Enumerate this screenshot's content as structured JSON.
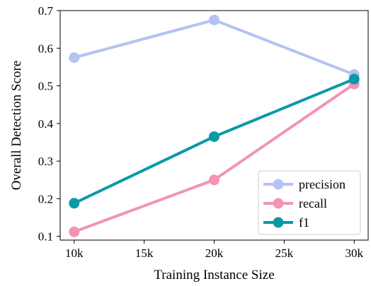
{
  "chart_data": {
    "type": "line",
    "title": "",
    "xlabel": "Training Instance Size",
    "ylabel": "Overall Detection Score",
    "x": [
      10000,
      20000,
      30000
    ],
    "xlim": [
      9000,
      31000
    ],
    "ylim": [
      0.09,
      0.7
    ],
    "xticks": [
      10000,
      15000,
      20000,
      25000,
      30000
    ],
    "xtick_labels": [
      "10k",
      "15k",
      "20k",
      "25k",
      "30k"
    ],
    "yticks": [
      0.1,
      0.2,
      0.3,
      0.4,
      0.5,
      0.6,
      0.7
    ],
    "ytick_labels": [
      "0.1",
      "0.2",
      "0.3",
      "0.4",
      "0.5",
      "0.6",
      "0.7"
    ],
    "grid": false,
    "legend_position": "lower-right",
    "series": [
      {
        "name": "precision",
        "values": [
          0.575,
          0.675,
          0.53
        ],
        "color": "#b3c3f2"
      },
      {
        "name": "recall",
        "values": [
          0.112,
          0.25,
          0.505
        ],
        "color": "#f194b8"
      },
      {
        "name": "f1",
        "values": [
          0.188,
          0.365,
          0.518
        ],
        "color": "#0b9aa5"
      }
    ]
  }
}
